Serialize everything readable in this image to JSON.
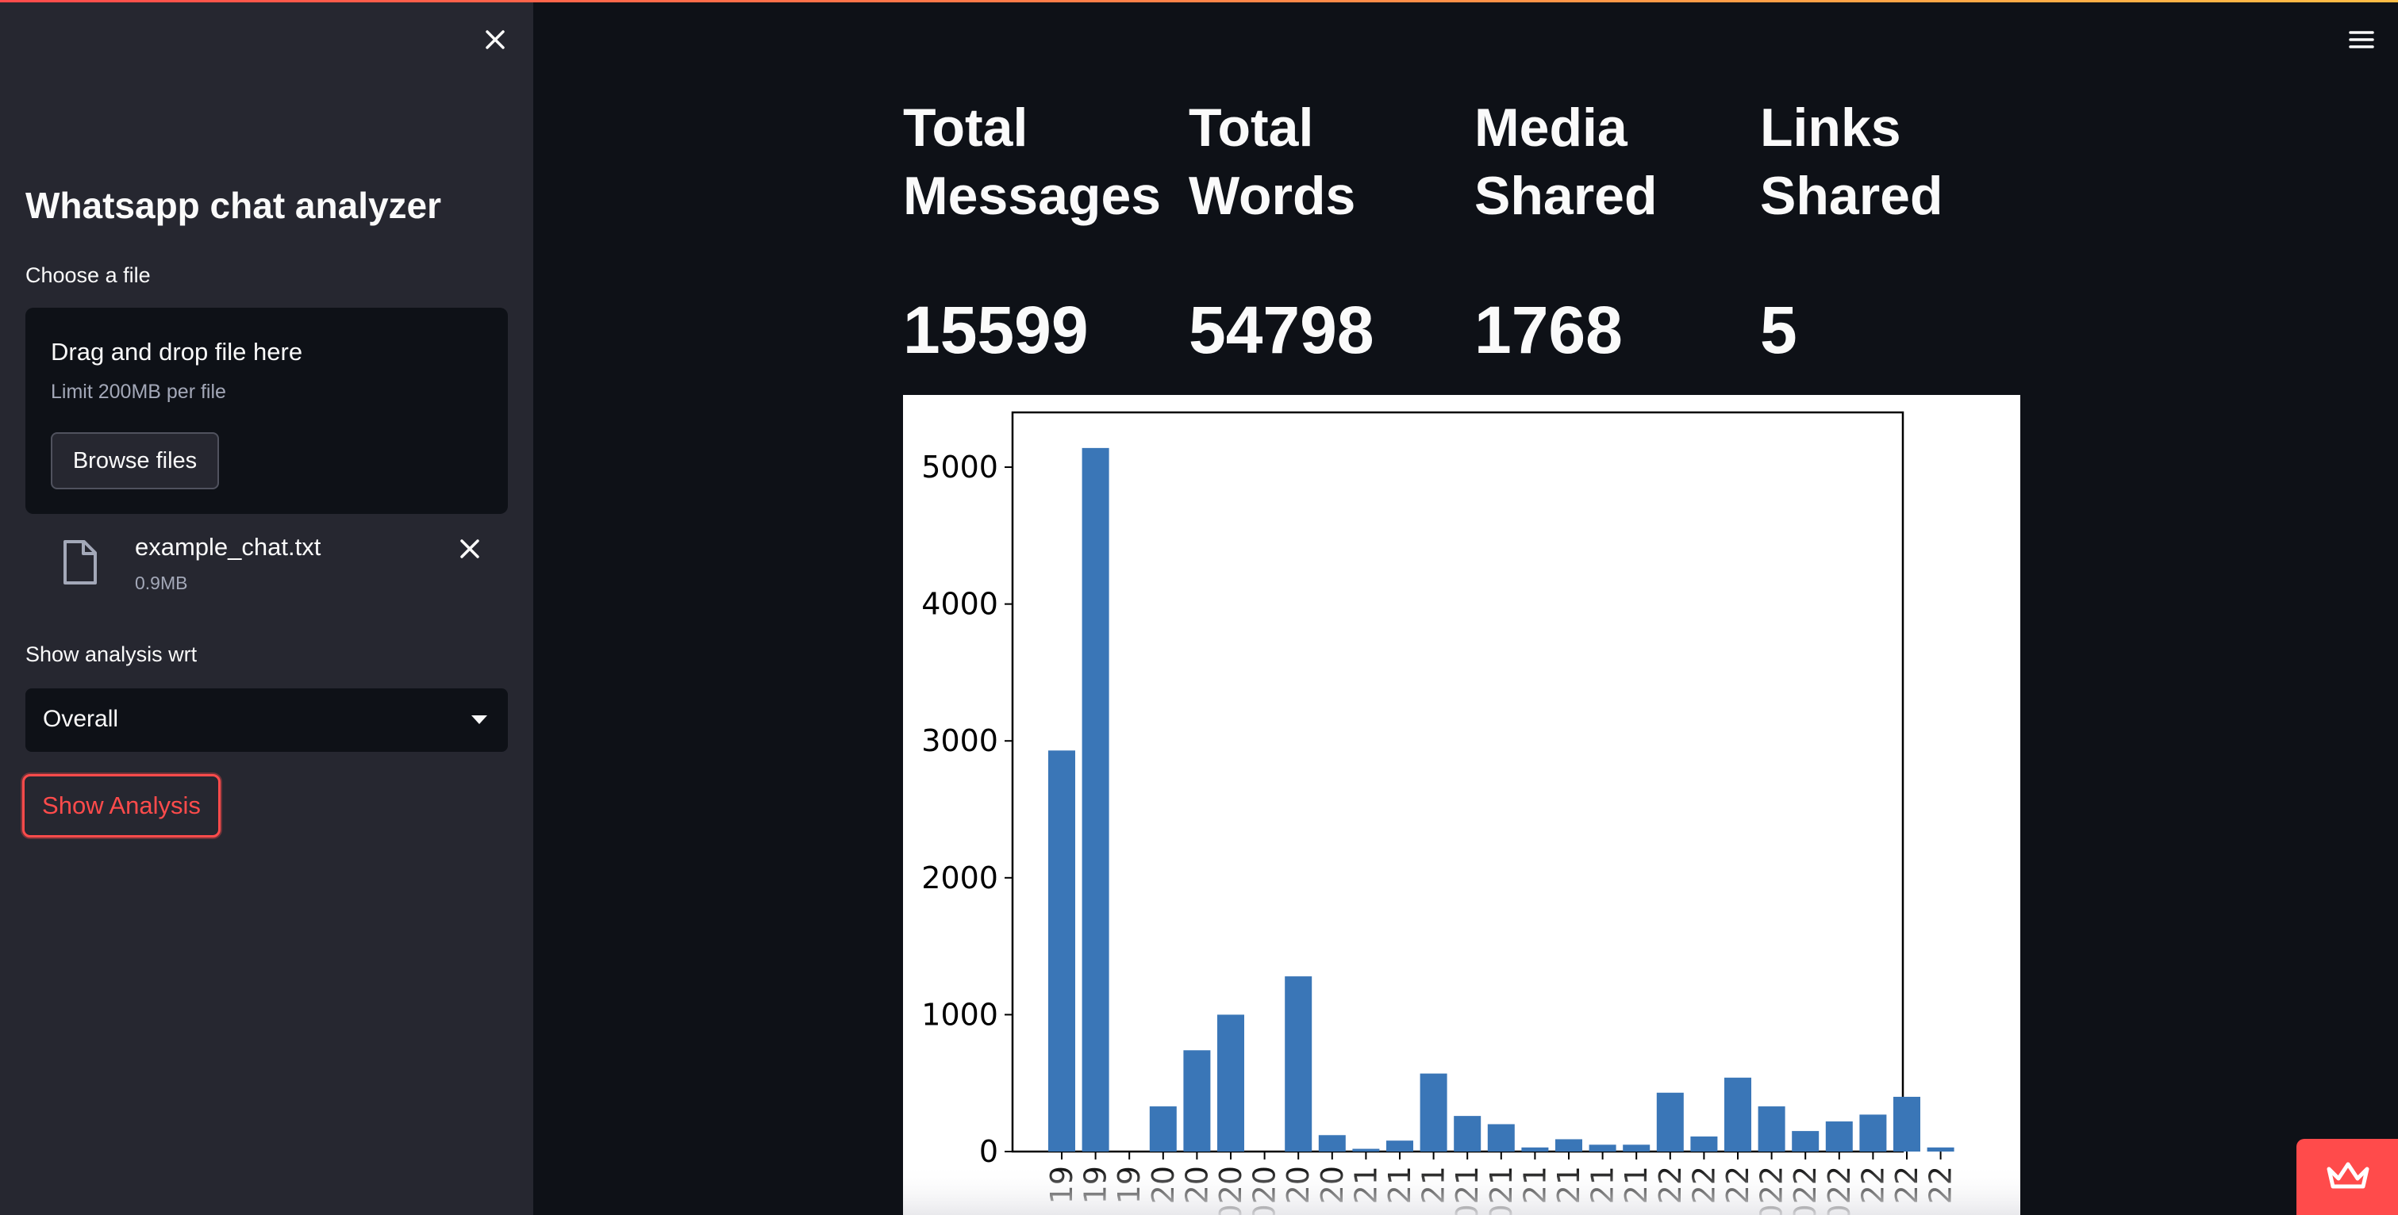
{
  "sidebar": {
    "title": "Whatsapp chat analyzer",
    "file_label": "Choose a file",
    "dropzone": {
      "title": "Drag and drop file here",
      "limit": "Limit 200MB per file",
      "browse_label": "Browse files"
    },
    "uploaded_file": {
      "name": "example_chat.txt",
      "size": "0.9MB"
    },
    "analysis_label": "Show analysis wrt",
    "analysis_selected": "Overall",
    "show_analysis_label": "Show Analysis"
  },
  "metrics": [
    {
      "label_line1": "Total",
      "label_line2": "Messages",
      "value": "15599"
    },
    {
      "label_line1": "Total",
      "label_line2": "Words",
      "value": "54798"
    },
    {
      "label_line1": "Media",
      "label_line2": "Shared",
      "value": "1768"
    },
    {
      "label_line1": "Links",
      "label_line2": "Shared",
      "value": "5"
    }
  ],
  "colors": {
    "accent": "#ff4b4b",
    "bar": "#3a76b7",
    "sidebar_bg": "#262730",
    "main_bg": "#0e1117"
  },
  "icons": {
    "close": "close-icon",
    "menu": "hamburger-menu-icon",
    "file": "file-icon",
    "badge": "crown-icon"
  },
  "chart_data": {
    "type": "bar",
    "ylim": [
      0,
      5400
    ],
    "yticks": [
      0,
      1000,
      2000,
      3000,
      4000,
      5000
    ],
    "categories": [
      "19",
      "19",
      "19",
      "20",
      "20",
      "020",
      "020",
      "20",
      "20",
      "21",
      "21",
      "21",
      "021",
      "021",
      "21",
      "21",
      "21",
      "21",
      "22",
      "22",
      "22",
      "022",
      "022",
      "022",
      "22",
      "22",
      "22"
    ],
    "values": [
      2930,
      5140,
      0,
      330,
      740,
      1000,
      0,
      1280,
      120,
      20,
      80,
      570,
      260,
      200,
      30,
      90,
      50,
      50,
      430,
      110,
      540,
      330,
      150,
      220,
      270,
      400,
      30
    ],
    "grid": false,
    "legend": "none"
  }
}
